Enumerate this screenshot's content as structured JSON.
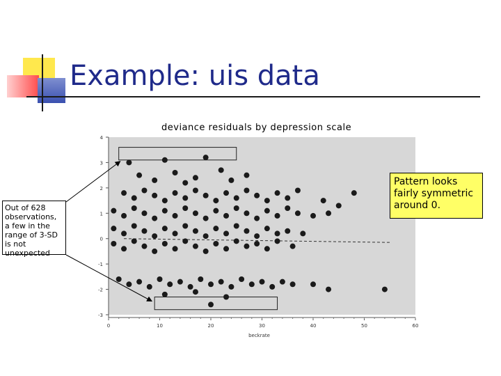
{
  "slide": {
    "title": "Example: uis data",
    "note_left": "Out of 628 observations, a few in the range of 3-SD is not unexpected",
    "note_right": "Pattern looks fairly symmetric around 0."
  },
  "colors": {
    "title": "#1f2a8a",
    "plot_bg": "#d7d7d7",
    "point": "#1a1a1a",
    "callout_yellow": "#ffff66",
    "logo_yellow": "#ffe84d",
    "logo_red": "#ff4c4c",
    "logo_blue": "#3a50b0"
  },
  "chart_data": {
    "type": "scatter",
    "title": "deviance residuals by depression scale",
    "xlabel": "beckrate",
    "ylabel": "",
    "xlim": [
      0,
      60
    ],
    "ylim": [
      -3,
      4
    ],
    "xticks": [
      0,
      10,
      20,
      30,
      40,
      50,
      60
    ],
    "yticks": [
      -3,
      -2,
      -1,
      0,
      1,
      2,
      3,
      4
    ],
    "grid": false,
    "series": [
      {
        "values": [
          [
            4,
            3.0
          ],
          [
            11,
            3.1
          ],
          [
            19,
            3.2
          ],
          [
            6,
            2.5
          ],
          [
            9,
            2.3
          ],
          [
            13,
            2.6
          ],
          [
            15,
            2.2
          ],
          [
            17,
            2.4
          ],
          [
            22,
            2.7
          ],
          [
            24,
            2.3
          ],
          [
            27,
            2.5
          ],
          [
            3,
            1.8
          ],
          [
            5,
            1.6
          ],
          [
            7,
            1.9
          ],
          [
            9,
            1.7
          ],
          [
            11,
            1.5
          ],
          [
            13,
            1.8
          ],
          [
            15,
            1.6
          ],
          [
            17,
            1.9
          ],
          [
            19,
            1.7
          ],
          [
            21,
            1.5
          ],
          [
            23,
            1.8
          ],
          [
            25,
            1.6
          ],
          [
            27,
            1.9
          ],
          [
            29,
            1.7
          ],
          [
            31,
            1.5
          ],
          [
            33,
            1.8
          ],
          [
            35,
            1.6
          ],
          [
            37,
            1.9
          ],
          [
            42,
            1.5
          ],
          [
            45,
            1.3
          ],
          [
            48,
            1.8
          ],
          [
            1,
            1.1
          ],
          [
            3,
            0.9
          ],
          [
            5,
            1.2
          ],
          [
            7,
            1.0
          ],
          [
            9,
            0.8
          ],
          [
            11,
            1.1
          ],
          [
            13,
            0.9
          ],
          [
            15,
            1.2
          ],
          [
            17,
            1.0
          ],
          [
            19,
            0.8
          ],
          [
            21,
            1.1
          ],
          [
            23,
            0.9
          ],
          [
            25,
            1.2
          ],
          [
            27,
            1.0
          ],
          [
            29,
            0.8
          ],
          [
            31,
            1.1
          ],
          [
            33,
            0.9
          ],
          [
            35,
            1.2
          ],
          [
            37,
            1.0
          ],
          [
            40,
            0.9
          ],
          [
            43,
            1.0
          ],
          [
            1,
            0.4
          ],
          [
            3,
            0.2
          ],
          [
            5,
            0.5
          ],
          [
            7,
            0.3
          ],
          [
            9,
            0.1
          ],
          [
            11,
            0.4
          ],
          [
            13,
            0.2
          ],
          [
            15,
            0.5
          ],
          [
            17,
            0.3
          ],
          [
            19,
            0.1
          ],
          [
            21,
            0.4
          ],
          [
            23,
            0.2
          ],
          [
            25,
            0.5
          ],
          [
            27,
            0.3
          ],
          [
            29,
            0.1
          ],
          [
            31,
            0.4
          ],
          [
            33,
            0.2
          ],
          [
            35,
            0.3
          ],
          [
            38,
            0.2
          ],
          [
            1,
            -0.2
          ],
          [
            3,
            -0.4
          ],
          [
            5,
            -0.1
          ],
          [
            7,
            -0.3
          ],
          [
            9,
            -0.5
          ],
          [
            11,
            -0.2
          ],
          [
            13,
            -0.4
          ],
          [
            15,
            -0.1
          ],
          [
            17,
            -0.3
          ],
          [
            19,
            -0.5
          ],
          [
            21,
            -0.2
          ],
          [
            23,
            -0.4
          ],
          [
            25,
            -0.1
          ],
          [
            27,
            -0.3
          ],
          [
            29,
            -0.2
          ],
          [
            31,
            -0.4
          ],
          [
            33,
            -0.1
          ],
          [
            36,
            -0.3
          ],
          [
            2,
            -1.6
          ],
          [
            4,
            -1.8
          ],
          [
            6,
            -1.7
          ],
          [
            8,
            -1.9
          ],
          [
            10,
            -1.6
          ],
          [
            12,
            -1.8
          ],
          [
            14,
            -1.7
          ],
          [
            16,
            -1.9
          ],
          [
            18,
            -1.6
          ],
          [
            20,
            -1.8
          ],
          [
            22,
            -1.7
          ],
          [
            24,
            -1.9
          ],
          [
            26,
            -1.6
          ],
          [
            28,
            -1.8
          ],
          [
            30,
            -1.7
          ],
          [
            32,
            -1.9
          ],
          [
            34,
            -1.7
          ],
          [
            36,
            -1.8
          ],
          [
            40,
            -1.8
          ],
          [
            43,
            -2.0
          ],
          [
            54,
            -2.0
          ],
          [
            11,
            -2.2
          ],
          [
            17,
            -2.1
          ],
          [
            23,
            -2.3
          ],
          [
            20,
            -2.6
          ]
        ]
      }
    ],
    "trend_line": [
      [
        3,
        0.0
      ],
      [
        55,
        -0.15
      ]
    ],
    "highlight_boxes": [
      {
        "x": [
          2,
          25
        ],
        "y": [
          3.6,
          3.1
        ]
      },
      {
        "x": [
          9,
          33
        ],
        "y": [
          -2.3,
          -2.8
        ]
      }
    ]
  }
}
